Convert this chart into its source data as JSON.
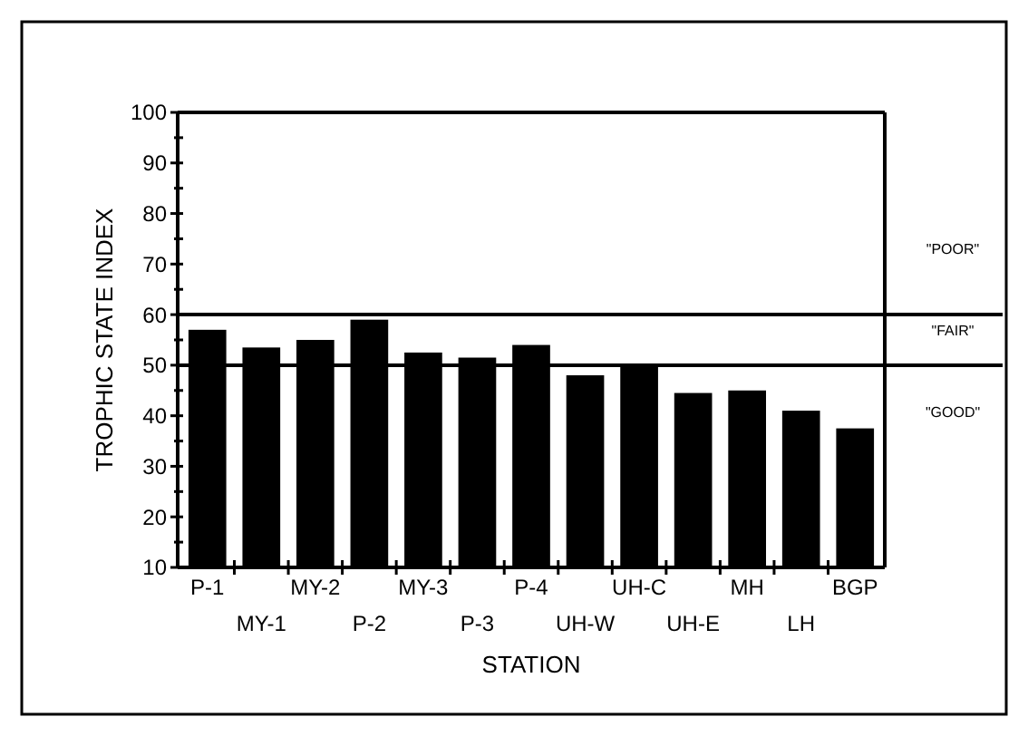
{
  "chart_data": {
    "type": "bar",
    "xlabel": "STATION",
    "ylabel": "TROPHIC STATE INDEX",
    "categories": [
      "P-1",
      "MY-1",
      "MY-2",
      "P-2",
      "MY-3",
      "P-3",
      "P-4",
      "UH-W",
      "UH-C",
      "UH-E",
      "MH",
      "LH",
      "BGP"
    ],
    "values": [
      57,
      53.5,
      55,
      59,
      52.5,
      51.5,
      54,
      48,
      50,
      44.5,
      45,
      41,
      37.5
    ],
    "color": "#000000",
    "ylim": [
      10,
      100
    ],
    "yticks": [
      10,
      {
        "value": 15,
        "label": null
      },
      20,
      {
        "value": 25,
        "label": null
      },
      30,
      {
        "value": 35,
        "label": null
      },
      40,
      {
        "value": 45,
        "label": null
      },
      50,
      {
        "value": 55,
        "label": null
      },
      60,
      {
        "value": 65,
        "label": null
      },
      70,
      {
        "value": 75,
        "label": null
      },
      80,
      {
        "value": 85,
        "label": null
      },
      90,
      {
        "value": 95,
        "label": null
      },
      100
    ],
    "ref_lines": [
      {
        "axis": "y",
        "value": 60,
        "label": null,
        "color": "#000000"
      },
      {
        "axis": "y",
        "value": 50,
        "label": null,
        "color": "#000000"
      }
    ],
    "annotations": [
      "\"POOR\"",
      "\"FAIR\"",
      "\"GOOD\""
    ],
    "grid": false
  }
}
